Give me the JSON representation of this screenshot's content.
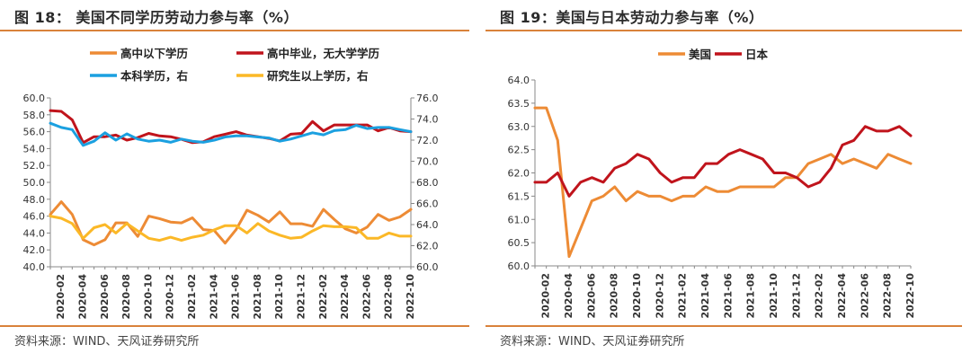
{
  "figures": [
    {
      "title": "图 18： 美国不同学历劳动力参与率（%）",
      "source": "资料来源：WIND、天风证券研究所"
    },
    {
      "title": "图 19：美国与日本劳动力参与率（%）",
      "source": "资料来源：WIND、天风证券研究所"
    }
  ],
  "chart_data": [
    {
      "type": "line",
      "title": "",
      "xlabel": "",
      "ylabel": "",
      "x": [
        "2020-01",
        "2020-02",
        "2020-03",
        "2020-04",
        "2020-05",
        "2020-06",
        "2020-07",
        "2020-08",
        "2020-09",
        "2020-10",
        "2020-11",
        "2020-12",
        "2021-01",
        "2021-02",
        "2021-03",
        "2021-04",
        "2021-05",
        "2021-06",
        "2021-07",
        "2021-08",
        "2021-09",
        "2021-10",
        "2021-11",
        "2021-12",
        "2022-01",
        "2022-02",
        "2022-03",
        "2022-04",
        "2022-05",
        "2022-06",
        "2022-07",
        "2022-08",
        "2022-09",
        "2022-10"
      ],
      "x_tick_labels": [
        "2020-02",
        "2020-04",
        "2020-06",
        "2020-08",
        "2020-10",
        "2020-12",
        "2021-02",
        "2021-04",
        "2021-06",
        "2021-08",
        "2021-10",
        "2021-12",
        "2022-02",
        "2022-04",
        "2022-06",
        "2022-08",
        "2022-10"
      ],
      "y_left": {
        "ylim": [
          40,
          60
        ],
        "ticks": [
          "40.0",
          "42.0",
          "44.0",
          "46.0",
          "48.0",
          "50.0",
          "52.0",
          "54.0",
          "56.0",
          "58.0",
          "60.0"
        ]
      },
      "y_right": {
        "ylim": [
          60,
          76
        ],
        "ticks": [
          "60.0",
          "62.0",
          "64.0",
          "66.0",
          "68.0",
          "70.0",
          "72.0",
          "74.0",
          "76.0"
        ]
      },
      "grid": false,
      "legend_position": "top",
      "series": [
        {
          "name": "高中以下学历",
          "axis": "left",
          "color": "#ed8b35",
          "values": [
            46.2,
            47.7,
            46.2,
            43.2,
            42.6,
            43.2,
            45.2,
            45.2,
            43.6,
            46.0,
            45.7,
            45.3,
            45.2,
            45.8,
            44.4,
            44.3,
            42.8,
            44.4,
            46.7,
            46.1,
            45.3,
            46.5,
            45.1,
            45.1,
            44.8,
            46.8,
            45.6,
            44.5,
            44.0,
            44.7,
            46.2,
            45.5,
            45.9,
            46.8
          ]
        },
        {
          "name": "高中毕业，无大学学历",
          "axis": "left",
          "color": "#c0141c",
          "values": [
            58.5,
            58.4,
            57.4,
            54.7,
            55.4,
            55.4,
            55.6,
            55.0,
            55.3,
            55.8,
            55.5,
            55.4,
            55.1,
            54.7,
            54.8,
            55.4,
            55.7,
            56.0,
            55.6,
            55.4,
            55.2,
            54.9,
            55.7,
            55.8,
            57.2,
            56.1,
            56.8,
            56.8,
            56.8,
            56.8,
            56.1,
            56.5,
            56.1,
            56.0
          ]
        },
        {
          "name": "本科学历，右",
          "axis": "right",
          "color": "#1ba0e0",
          "values": [
            73.6,
            73.2,
            73.0,
            71.5,
            71.9,
            72.7,
            72.0,
            72.6,
            72.1,
            71.9,
            72.0,
            71.8,
            72.1,
            71.9,
            71.8,
            72.0,
            72.3,
            72.4,
            72.4,
            72.3,
            72.2,
            71.9,
            72.1,
            72.4,
            72.7,
            72.5,
            72.9,
            73.0,
            73.4,
            73.1,
            73.2,
            73.2,
            73.0,
            72.8
          ]
        },
        {
          "name": "研究生以上学历，右",
          "axis": "right",
          "color": "#fbb827",
          "values": [
            64.8,
            64.6,
            64.1,
            62.7,
            63.7,
            64.0,
            63.2,
            64.1,
            63.4,
            62.7,
            62.5,
            62.8,
            62.5,
            62.8,
            63.0,
            63.5,
            63.9,
            63.9,
            63.2,
            64.1,
            63.4,
            63.0,
            62.7,
            62.8,
            63.4,
            63.9,
            63.8,
            63.8,
            63.7,
            62.7,
            62.7,
            63.2,
            62.9,
            62.9
          ]
        }
      ]
    },
    {
      "type": "line",
      "title": "",
      "xlabel": "",
      "ylabel": "",
      "x": [
        "2020-01",
        "2020-02",
        "2020-03",
        "2020-04",
        "2020-05",
        "2020-06",
        "2020-07",
        "2020-08",
        "2020-09",
        "2020-10",
        "2020-11",
        "2020-12",
        "2021-01",
        "2021-02",
        "2021-03",
        "2021-04",
        "2021-05",
        "2021-06",
        "2021-07",
        "2021-08",
        "2021-09",
        "2021-10",
        "2021-11",
        "2021-12",
        "2022-01",
        "2022-02",
        "2022-03",
        "2022-04",
        "2022-05",
        "2022-06",
        "2022-07",
        "2022-08",
        "2022-09",
        "2022-10"
      ],
      "x_tick_labels": [
        "2020-02",
        "2020-04",
        "2020-06",
        "2020-08",
        "2020-10",
        "2020-12",
        "2021-02",
        "2021-04",
        "2021-06",
        "2021-08",
        "2021-10",
        "2021-12",
        "2022-02",
        "2022-04",
        "2022-06",
        "2022-08",
        "2022-10"
      ],
      "y_left": {
        "ylim": [
          60,
          64
        ],
        "ticks": [
          "60.0",
          "60.5",
          "61.0",
          "61.5",
          "62.0",
          "62.5",
          "63.0",
          "63.5",
          "64.0"
        ]
      },
      "grid": false,
      "legend_position": "top",
      "series": [
        {
          "name": "美国",
          "color": "#ed8b35",
          "values": [
            63.4,
            63.4,
            62.7,
            60.2,
            60.8,
            61.4,
            61.5,
            61.7,
            61.4,
            61.6,
            61.5,
            61.5,
            61.4,
            61.5,
            61.5,
            61.7,
            61.6,
            61.6,
            61.7,
            61.7,
            61.7,
            61.7,
            61.9,
            61.9,
            62.2,
            62.3,
            62.4,
            62.2,
            62.3,
            62.2,
            62.1,
            62.4,
            62.3,
            62.2
          ]
        },
        {
          "name": "日本",
          "color": "#c0141c",
          "values": [
            61.8,
            61.8,
            62.0,
            61.5,
            61.8,
            61.9,
            61.8,
            62.1,
            62.2,
            62.4,
            62.3,
            62.0,
            61.8,
            61.9,
            61.9,
            62.2,
            62.2,
            62.4,
            62.5,
            62.4,
            62.3,
            62.0,
            62.0,
            61.9,
            61.7,
            61.8,
            62.1,
            62.6,
            62.7,
            63.0,
            62.9,
            62.9,
            63.0,
            62.8
          ]
        }
      ]
    }
  ]
}
